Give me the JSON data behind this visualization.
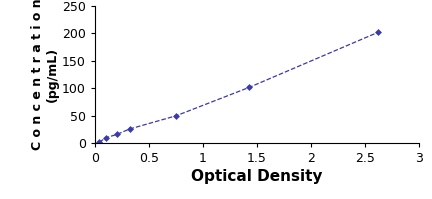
{
  "x_data": [
    0.04,
    0.1,
    0.2,
    0.32,
    0.75,
    1.43,
    2.62
  ],
  "y_data": [
    2,
    10,
    16,
    26,
    50,
    102,
    202
  ],
  "line_color": "#3a3aaa",
  "marker_color": "#3a3aaa",
  "marker_style": "D",
  "marker_size": 3,
  "line_width": 0.9,
  "xlabel": "Optical Density",
  "ylabel": "C o n c e n t r a t i o n\n(pg/mL)",
  "xlim": [
    0,
    3
  ],
  "ylim": [
    0,
    250
  ],
  "xticks": [
    0,
    0.5,
    1,
    1.5,
    2,
    2.5,
    3
  ],
  "yticks": [
    0,
    50,
    100,
    150,
    200,
    250
  ],
  "xlabel_fontsize": 11,
  "ylabel_fontsize": 9,
  "tick_fontsize": 9,
  "background_color": "#ffffff",
  "line_style": "--"
}
